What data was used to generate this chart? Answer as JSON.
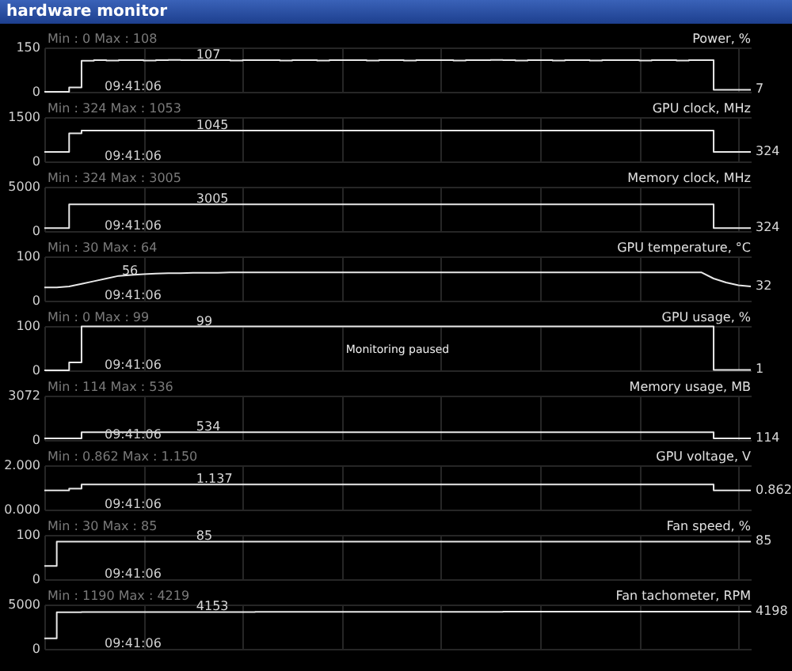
{
  "chart_data": [
    {
      "type": "step",
      "title": "hardware monitor",
      "ylabel": "Power, %",
      "subtitle": "Min : 0   Max : 108",
      "annotations": [
        "09:41:06"
      ],
      "ylim": [
        0,
        150
      ],
      "yticks": [
        0,
        150
      ],
      "grid": true,
      "tick_labels": "y",
      "color": "#e8e8e8",
      "categories": [
        null,
        null,
        null,
        null,
        null,
        null,
        null,
        null,
        null,
        null,
        null,
        null,
        null,
        null,
        null,
        null,
        null,
        null,
        null,
        null,
        null,
        null,
        null,
        null,
        null,
        null,
        null,
        null,
        null,
        null,
        null,
        null,
        null,
        null,
        null,
        null,
        null,
        null,
        null,
        null,
        null,
        null,
        null,
        null,
        null,
        null,
        null,
        null,
        null,
        null,
        null,
        null,
        null,
        null,
        null,
        null,
        null,
        null
      ],
      "values": [
        0,
        0,
        15,
        105,
        107,
        106,
        107,
        107,
        106,
        107,
        108,
        107,
        107,
        107,
        107,
        106,
        107,
        107,
        107,
        106,
        107,
        107,
        106,
        107,
        107,
        107,
        106,
        107,
        107,
        106,
        107,
        107,
        107,
        106,
        107,
        107,
        108,
        107,
        106,
        107,
        107,
        106,
        107,
        107,
        106,
        107,
        107,
        107,
        106,
        107,
        107,
        106,
        107,
        107,
        7,
        7,
        7,
        7
      ],
      "value_labels": [
        null,
        null,
        null,
        null,
        null,
        null,
        null,
        null,
        null,
        null,
        null,
        null,
        "107",
        null,
        null,
        null,
        null,
        null,
        null,
        null,
        null,
        null,
        null,
        null,
        null,
        null,
        null,
        null,
        null,
        null,
        null,
        null,
        null,
        null,
        null,
        null,
        null,
        null,
        null,
        null,
        null,
        null,
        null,
        null,
        null,
        null,
        null,
        null,
        null,
        null,
        null,
        null,
        null,
        null,
        null,
        null,
        null,
        "7"
      ]
    },
    {
      "type": "step",
      "ylabel": "GPU clock, MHz",
      "subtitle": "Min : 324   Max : 1053",
      "annotations": [
        "09:41:06"
      ],
      "ylim": [
        0,
        1500
      ],
      "yticks": [
        0,
        1500
      ],
      "grid": true,
      "tick_labels": "y",
      "color": "#e8e8e8",
      "categories": [
        null,
        null,
        null,
        null,
        null,
        null,
        null,
        null,
        null,
        null,
        null,
        null,
        null,
        null,
        null,
        null,
        null,
        null,
        null,
        null,
        null,
        null,
        null,
        null,
        null,
        null,
        null,
        null,
        null,
        null,
        null,
        null,
        null,
        null,
        null,
        null,
        null,
        null,
        null,
        null,
        null,
        null,
        null,
        null,
        null,
        null,
        null,
        null,
        null,
        null,
        null,
        null,
        null,
        null,
        null,
        null,
        null,
        null
      ],
      "values": [
        324,
        324,
        950,
        1045,
        1045,
        1045,
        1045,
        1045,
        1045,
        1045,
        1045,
        1045,
        1045,
        1045,
        1045,
        1045,
        1045,
        1045,
        1045,
        1045,
        1045,
        1045,
        1045,
        1045,
        1045,
        1045,
        1045,
        1045,
        1045,
        1045,
        1045,
        1045,
        1045,
        1045,
        1045,
        1045,
        1045,
        1045,
        1045,
        1045,
        1045,
        1045,
        1045,
        1045,
        1045,
        1045,
        1045,
        1045,
        1045,
        1045,
        1045,
        1045,
        1045,
        1045,
        324,
        324,
        324,
        324
      ],
      "value_labels": [
        null,
        null,
        null,
        null,
        null,
        null,
        null,
        null,
        null,
        null,
        null,
        null,
        "1045",
        null,
        null,
        null,
        null,
        null,
        null,
        null,
        null,
        null,
        null,
        null,
        null,
        null,
        null,
        null,
        null,
        null,
        null,
        null,
        null,
        null,
        null,
        null,
        null,
        null,
        null,
        null,
        null,
        null,
        null,
        null,
        null,
        null,
        null,
        null,
        null,
        null,
        null,
        null,
        null,
        null,
        null,
        null,
        null,
        "324"
      ]
    },
    {
      "type": "step",
      "ylabel": "Memory clock, MHz",
      "subtitle": "Min : 324   Max : 3005",
      "annotations": [
        "09:41:06"
      ],
      "ylim": [
        0,
        5000
      ],
      "yticks": [
        0,
        5000
      ],
      "grid": true,
      "tick_labels": "y",
      "color": "#e8e8e8",
      "categories": [
        null,
        null,
        null,
        null,
        null,
        null,
        null,
        null,
        null,
        null,
        null,
        null,
        null,
        null,
        null,
        null,
        null,
        null,
        null,
        null,
        null,
        null,
        null,
        null,
        null,
        null,
        null,
        null,
        null,
        null,
        null,
        null,
        null,
        null,
        null,
        null,
        null,
        null,
        null,
        null,
        null,
        null,
        null,
        null,
        null,
        null,
        null,
        null,
        null,
        null,
        null,
        null,
        null,
        null,
        null,
        null,
        null,
        null
      ],
      "values": [
        324,
        324,
        3005,
        3005,
        3005,
        3005,
        3005,
        3005,
        3005,
        3005,
        3005,
        3005,
        3005,
        3005,
        3005,
        3005,
        3005,
        3005,
        3005,
        3005,
        3005,
        3005,
        3005,
        3005,
        3005,
        3005,
        3005,
        3005,
        3005,
        3005,
        3005,
        3005,
        3005,
        3005,
        3005,
        3005,
        3005,
        3005,
        3005,
        3005,
        3005,
        3005,
        3005,
        3005,
        3005,
        3005,
        3005,
        3005,
        3005,
        3005,
        3005,
        3005,
        3005,
        3005,
        324,
        324,
        324,
        324
      ],
      "value_labels": [
        null,
        null,
        null,
        null,
        null,
        null,
        null,
        null,
        null,
        null,
        null,
        null,
        "3005",
        null,
        null,
        null,
        null,
        null,
        null,
        null,
        null,
        null,
        null,
        null,
        null,
        null,
        null,
        null,
        null,
        null,
        null,
        null,
        null,
        null,
        null,
        null,
        null,
        null,
        null,
        null,
        null,
        null,
        null,
        null,
        null,
        null,
        null,
        null,
        null,
        null,
        null,
        null,
        null,
        null,
        null,
        null,
        null,
        "324"
      ]
    },
    {
      "type": "line",
      "ylabel": "GPU temperature, °C",
      "subtitle": "Min : 30   Max : 64",
      "annotations": [
        "09:41:06"
      ],
      "ylim": [
        0,
        100
      ],
      "yticks": [
        0,
        100
      ],
      "grid": true,
      "tick_labels": "y",
      "color": "#e8e8e8",
      "categories": [
        null,
        null,
        null,
        null,
        null,
        null,
        null,
        null,
        null,
        null,
        null,
        null,
        null,
        null,
        null,
        null,
        null,
        null,
        null,
        null,
        null,
        null,
        null,
        null,
        null,
        null,
        null,
        null,
        null,
        null,
        null,
        null,
        null,
        null,
        null,
        null,
        null,
        null,
        null,
        null,
        null,
        null,
        null,
        null,
        null,
        null,
        null,
        null,
        null,
        null,
        null,
        null,
        null,
        null,
        null,
        null,
        null,
        null
      ],
      "values": [
        30,
        30,
        32,
        38,
        44,
        50,
        56,
        58,
        60,
        61,
        62,
        62,
        63,
        63,
        63,
        64,
        64,
        64,
        64,
        64,
        64,
        64,
        64,
        64,
        64,
        64,
        64,
        64,
        64,
        64,
        64,
        64,
        64,
        64,
        64,
        64,
        64,
        64,
        64,
        64,
        64,
        64,
        64,
        64,
        64,
        64,
        64,
        64,
        64,
        64,
        64,
        64,
        64,
        64,
        50,
        41,
        35,
        32
      ],
      "value_labels": [
        null,
        null,
        null,
        null,
        null,
        null,
        "56",
        null,
        null,
        null,
        null,
        null,
        null,
        null,
        null,
        null,
        null,
        null,
        null,
        null,
        null,
        null,
        null,
        null,
        null,
        null,
        null,
        null,
        null,
        null,
        null,
        null,
        null,
        null,
        null,
        null,
        null,
        null,
        null,
        null,
        null,
        null,
        null,
        null,
        null,
        null,
        null,
        null,
        null,
        null,
        null,
        null,
        null,
        null,
        null,
        null,
        null,
        "32"
      ]
    },
    {
      "type": "step",
      "ylabel": "GPU usage, %",
      "subtitle": "Min : 0   Max : 99",
      "annotations": [
        "09:41:06",
        "Monitoring paused"
      ],
      "ylim": [
        0,
        100
      ],
      "yticks": [
        0,
        100
      ],
      "grid": true,
      "tick_labels": "y",
      "color": "#e8e8e8",
      "categories": [
        null,
        null,
        null,
        null,
        null,
        null,
        null,
        null,
        null,
        null,
        null,
        null,
        null,
        null,
        null,
        null,
        null,
        null,
        null,
        null,
        null,
        null,
        null,
        null,
        null,
        null,
        null,
        null,
        null,
        null,
        null,
        null,
        null,
        null,
        null,
        null,
        null,
        null,
        null,
        null,
        null,
        null,
        null,
        null,
        null,
        null,
        null,
        null,
        null,
        null,
        null,
        null,
        null,
        null,
        null,
        null,
        null,
        null
      ],
      "values": [
        0,
        0,
        18,
        99,
        99,
        99,
        99,
        99,
        99,
        99,
        99,
        99,
        99,
        99,
        99,
        99,
        99,
        99,
        99,
        99,
        99,
        99,
        99,
        99,
        99,
        99,
        99,
        99,
        99,
        99,
        99,
        99,
        99,
        99,
        99,
        99,
        99,
        99,
        99,
        99,
        99,
        99,
        99,
        99,
        99,
        99,
        99,
        99,
        99,
        99,
        99,
        99,
        99,
        99,
        1,
        1,
        1,
        1
      ],
      "value_labels": [
        null,
        null,
        null,
        null,
        null,
        null,
        null,
        null,
        null,
        null,
        null,
        null,
        "99",
        null,
        null,
        null,
        null,
        null,
        null,
        null,
        null,
        null,
        null,
        null,
        null,
        null,
        null,
        null,
        null,
        null,
        null,
        null,
        null,
        null,
        null,
        null,
        null,
        null,
        null,
        null,
        null,
        null,
        null,
        null,
        null,
        null,
        null,
        null,
        null,
        null,
        null,
        null,
        null,
        null,
        null,
        null,
        null,
        "1"
      ]
    },
    {
      "type": "step",
      "ylabel": "Memory usage, MB",
      "subtitle": "Min : 114   Max : 536",
      "annotations": [
        "09:41:06"
      ],
      "ylim": [
        0,
        3072
      ],
      "yticks": [
        0,
        3072
      ],
      "grid": true,
      "tick_labels": "y",
      "color": "#e8e8e8",
      "categories": [
        null,
        null,
        null,
        null,
        null,
        null,
        null,
        null,
        null,
        null,
        null,
        null,
        null,
        null,
        null,
        null,
        null,
        null,
        null,
        null,
        null,
        null,
        null,
        null,
        null,
        null,
        null,
        null,
        null,
        null,
        null,
        null,
        null,
        null,
        null,
        null,
        null,
        null,
        null,
        null,
        null,
        null,
        null,
        null,
        null,
        null,
        null,
        null,
        null,
        null,
        null,
        null,
        null,
        null,
        null,
        null,
        null,
        null
      ],
      "values": [
        114,
        114,
        114,
        534,
        534,
        534,
        534,
        534,
        534,
        534,
        534,
        534,
        534,
        534,
        534,
        534,
        534,
        534,
        534,
        534,
        534,
        534,
        534,
        534,
        534,
        534,
        534,
        534,
        534,
        534,
        534,
        536,
        536,
        536,
        534,
        534,
        534,
        534,
        534,
        534,
        534,
        534,
        534,
        534,
        534,
        534,
        534,
        534,
        534,
        534,
        534,
        534,
        534,
        534,
        114,
        114,
        114,
        114
      ],
      "value_labels": [
        null,
        null,
        null,
        null,
        null,
        null,
        null,
        null,
        null,
        null,
        null,
        null,
        "534",
        null,
        null,
        null,
        null,
        null,
        null,
        null,
        null,
        null,
        null,
        null,
        null,
        null,
        null,
        null,
        null,
        null,
        null,
        null,
        null,
        null,
        null,
        null,
        null,
        null,
        null,
        null,
        null,
        null,
        null,
        null,
        null,
        null,
        null,
        null,
        null,
        null,
        null,
        null,
        null,
        null,
        null,
        null,
        null,
        "114"
      ]
    },
    {
      "type": "step",
      "ylabel": "GPU voltage, V",
      "subtitle": "Min : 0.862   Max : 1.150",
      "annotations": [
        "09:41:06"
      ],
      "ylim": [
        0,
        2
      ],
      "yticks": [
        {
          "value": 0,
          "label": "0.000"
        },
        {
          "value": 2,
          "label": "2.000"
        }
      ],
      "grid": true,
      "tick_labels": "y",
      "color": "#e8e8e8",
      "categories": [
        null,
        null,
        null,
        null,
        null,
        null,
        null,
        null,
        null,
        null,
        null,
        null,
        null,
        null,
        null,
        null,
        null,
        null,
        null,
        null,
        null,
        null,
        null,
        null,
        null,
        null,
        null,
        null,
        null,
        null,
        null,
        null,
        null,
        null,
        null,
        null,
        null,
        null,
        null,
        null,
        null,
        null,
        null,
        null,
        null,
        null,
        null,
        null,
        null,
        null,
        null,
        null,
        null,
        null,
        null,
        null,
        null,
        null
      ],
      "values": [
        0.862,
        0.862,
        0.95,
        1.137,
        1.137,
        1.137,
        1.137,
        1.137,
        1.137,
        1.137,
        1.137,
        1.137,
        1.137,
        1.137,
        1.137,
        1.137,
        1.137,
        1.137,
        1.137,
        1.137,
        1.137,
        1.137,
        1.137,
        1.137,
        1.137,
        1.137,
        1.137,
        1.137,
        1.137,
        1.137,
        1.137,
        1.137,
        1.137,
        1.137,
        1.137,
        1.137,
        1.137,
        1.137,
        1.137,
        1.137,
        1.137,
        1.137,
        1.137,
        1.137,
        1.137,
        1.137,
        1.137,
        1.137,
        1.137,
        1.137,
        1.137,
        1.137,
        1.137,
        1.137,
        0.862,
        0.862,
        0.862,
        0.862
      ],
      "value_labels": [
        null,
        null,
        null,
        null,
        null,
        null,
        null,
        null,
        null,
        null,
        null,
        null,
        "1.137",
        null,
        null,
        null,
        null,
        null,
        null,
        null,
        null,
        null,
        null,
        null,
        null,
        null,
        null,
        null,
        null,
        null,
        null,
        null,
        null,
        null,
        null,
        null,
        null,
        null,
        null,
        null,
        null,
        null,
        null,
        null,
        null,
        null,
        null,
        null,
        null,
        null,
        null,
        null,
        null,
        null,
        null,
        null,
        null,
        "0.862"
      ]
    },
    {
      "type": "step",
      "ylabel": "Fan speed, %",
      "subtitle": "Min : 30   Max : 85",
      "annotations": [
        "09:41:06"
      ],
      "ylim": [
        0,
        100
      ],
      "yticks": [
        0,
        100
      ],
      "grid": true,
      "tick_labels": "y",
      "color": "#e8e8e8",
      "categories": [
        null,
        null,
        null,
        null,
        null,
        null,
        null,
        null,
        null,
        null,
        null,
        null,
        null,
        null,
        null,
        null,
        null,
        null,
        null,
        null,
        null,
        null,
        null,
        null,
        null,
        null,
        null,
        null,
        null,
        null,
        null,
        null,
        null,
        null,
        null,
        null,
        null,
        null,
        null,
        null,
        null,
        null,
        null,
        null,
        null,
        null,
        null,
        null,
        null,
        null,
        null,
        null,
        null,
        null,
        null,
        null,
        null,
        null
      ],
      "values": [
        30,
        85,
        85,
        85,
        85,
        85,
        85,
        85,
        85,
        85,
        85,
        85,
        85,
        85,
        85,
        85,
        85,
        85,
        85,
        85,
        85,
        85,
        85,
        85,
        85,
        85,
        85,
        85,
        85,
        85,
        85,
        85,
        85,
        85,
        85,
        85,
        85,
        85,
        85,
        85,
        85,
        85,
        85,
        85,
        85,
        85,
        85,
        85,
        85,
        85,
        85,
        85,
        85,
        85,
        85,
        85,
        85,
        85
      ],
      "value_labels": [
        null,
        null,
        null,
        null,
        null,
        null,
        null,
        null,
        null,
        null,
        null,
        null,
        "85",
        null,
        null,
        null,
        null,
        null,
        null,
        null,
        null,
        null,
        null,
        null,
        null,
        null,
        null,
        null,
        null,
        null,
        null,
        null,
        null,
        null,
        null,
        null,
        null,
        null,
        null,
        null,
        null,
        null,
        null,
        null,
        null,
        null,
        null,
        null,
        null,
        null,
        null,
        null,
        null,
        null,
        null,
        null,
        null,
        "85"
      ]
    },
    {
      "type": "step",
      "ylabel": "Fan tachometer, RPM",
      "subtitle": "Min : 1190   Max : 4219",
      "annotations": [
        "09:41:06"
      ],
      "ylim": [
        0,
        5000
      ],
      "yticks": [
        0,
        5000
      ],
      "grid": true,
      "tick_labels": "y",
      "color": "#e8e8e8",
      "categories": [
        null,
        null,
        null,
        null,
        null,
        null,
        null,
        null,
        null,
        null,
        null,
        null,
        null,
        null,
        null,
        null,
        null,
        null,
        null,
        null,
        null,
        null,
        null,
        null,
        null,
        null,
        null,
        null,
        null,
        null,
        null,
        null,
        null,
        null,
        null,
        null,
        null,
        null,
        null,
        null,
        null,
        null,
        null,
        null,
        null,
        null,
        null,
        null,
        null,
        null,
        null,
        null,
        null,
        null,
        null,
        null,
        null,
        null
      ],
      "values": [
        1190,
        4130,
        4140,
        4150,
        4150,
        4150,
        4150,
        4150,
        4150,
        4150,
        4150,
        4150,
        4153,
        4160,
        4160,
        4160,
        4160,
        4170,
        4170,
        4170,
        4170,
        4170,
        4170,
        4170,
        4170,
        4170,
        4170,
        4180,
        4180,
        4180,
        4180,
        4180,
        4180,
        4180,
        4180,
        4180,
        4180,
        4190,
        4190,
        4190,
        4190,
        4190,
        4190,
        4190,
        4190,
        4190,
        4190,
        4195,
        4195,
        4195,
        4195,
        4195,
        4195,
        4195,
        4195,
        4195,
        4195,
        4198
      ],
      "value_labels": [
        null,
        null,
        null,
        null,
        null,
        null,
        null,
        null,
        null,
        null,
        null,
        null,
        "4153",
        null,
        null,
        null,
        null,
        null,
        null,
        null,
        null,
        null,
        null,
        null,
        null,
        null,
        null,
        null,
        null,
        null,
        null,
        null,
        null,
        null,
        null,
        null,
        null,
        null,
        null,
        null,
        null,
        null,
        null,
        null,
        null,
        null,
        null,
        null,
        null,
        null,
        null,
        null,
        null,
        null,
        null,
        null,
        null,
        "4198"
      ]
    }
  ]
}
